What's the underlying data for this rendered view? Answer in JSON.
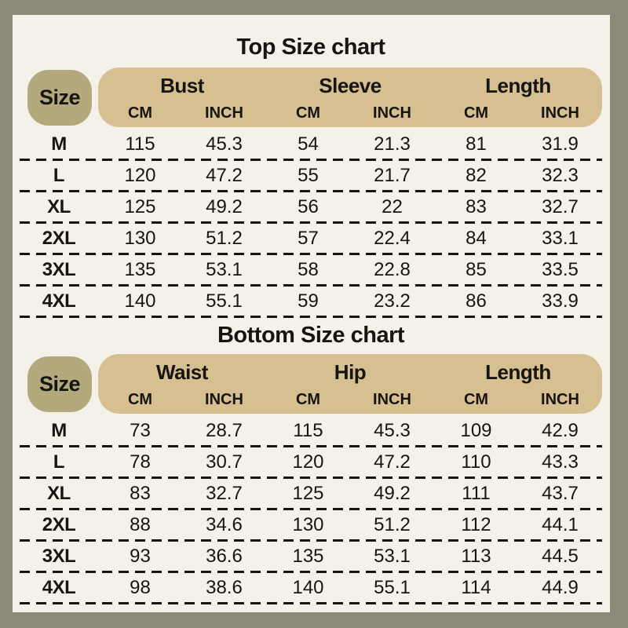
{
  "colors": {
    "frame_background": "#8c897b",
    "panel_background": "#f4f1e9",
    "header_banner": "#d6bf90",
    "size_pill": "#b3a97d",
    "text": "#171512"
  },
  "chart_data": [
    {
      "type": "table",
      "title": "Top Size chart",
      "size_column_header": "Size",
      "column_groups": [
        {
          "label": "Bust",
          "units": [
            "CM",
            "INCH"
          ]
        },
        {
          "label": "Sleeve",
          "units": [
            "CM",
            "INCH"
          ]
        },
        {
          "label": "Length",
          "units": [
            "CM",
            "INCH"
          ]
        }
      ],
      "rows": [
        {
          "size": "M",
          "values": [
            "115",
            "45.3",
            "54",
            "21.3",
            "81",
            "31.9"
          ]
        },
        {
          "size": "L",
          "values": [
            "120",
            "47.2",
            "55",
            "21.7",
            "82",
            "32.3"
          ]
        },
        {
          "size": "XL",
          "values": [
            "125",
            "49.2",
            "56",
            "22",
            "83",
            "32.7"
          ]
        },
        {
          "size": "2XL",
          "values": [
            "130",
            "51.2",
            "57",
            "22.4",
            "84",
            "33.1"
          ]
        },
        {
          "size": "3XL",
          "values": [
            "135",
            "53.1",
            "58",
            "22.8",
            "85",
            "33.5"
          ]
        },
        {
          "size": "4XL",
          "values": [
            "140",
            "55.1",
            "59",
            "23.2",
            "86",
            "33.9"
          ]
        }
      ]
    },
    {
      "type": "table",
      "title": "Bottom Size chart",
      "size_column_header": "Size",
      "column_groups": [
        {
          "label": "Waist",
          "units": [
            "CM",
            "INCH"
          ]
        },
        {
          "label": "Hip",
          "units": [
            "CM",
            "INCH"
          ]
        },
        {
          "label": "Length",
          "units": [
            "CM",
            "INCH"
          ]
        }
      ],
      "rows": [
        {
          "size": "M",
          "values": [
            "73",
            "28.7",
            "115",
            "45.3",
            "109",
            "42.9"
          ]
        },
        {
          "size": "L",
          "values": [
            "78",
            "30.7",
            "120",
            "47.2",
            "110",
            "43.3"
          ]
        },
        {
          "size": "XL",
          "values": [
            "83",
            "32.7",
            "125",
            "49.2",
            "111",
            "43.7"
          ]
        },
        {
          "size": "2XL",
          "values": [
            "88",
            "34.6",
            "130",
            "51.2",
            "112",
            "44.1"
          ]
        },
        {
          "size": "3XL",
          "values": [
            "93",
            "36.6",
            "135",
            "53.1",
            "113",
            "44.5"
          ]
        },
        {
          "size": "4XL",
          "values": [
            "98",
            "38.6",
            "140",
            "55.1",
            "114",
            "44.9"
          ]
        }
      ]
    }
  ]
}
